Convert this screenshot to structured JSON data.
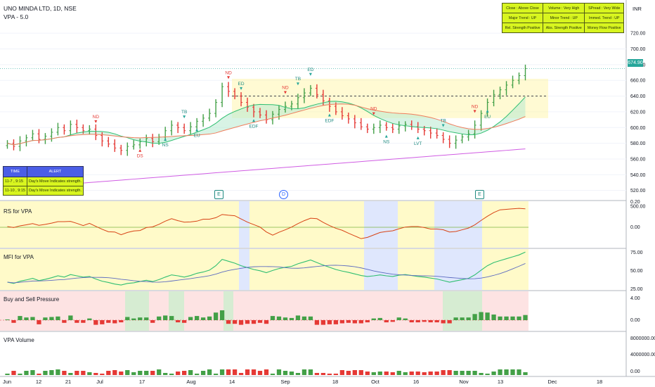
{
  "header": {
    "symbol_line": "UNO MINDA LTD, 1D, NSE",
    "indicator_line": "VPA - 5.0"
  },
  "currency": "INR",
  "last_price": "674.90",
  "condition_table": [
    [
      "Close : Above Close",
      "Volume : Very High",
      "SPread : Very Wide"
    ],
    [
      "Major Trend : UP",
      "Minor Trend : UP",
      "Immed. Trend : UP"
    ],
    [
      "Rel. Strength Positive",
      "Abs. Strength Positive",
      "Money Flow Positive"
    ]
  ],
  "alert_table": {
    "headers": [
      "TIME",
      "ALERT"
    ],
    "rows": [
      [
        "11-7 , 9:15",
        "Day's Move Indicates strength."
      ],
      [
        "11-10 , 9:15",
        "Day's Move Indicates strength."
      ]
    ]
  },
  "price_axis": [
    "720.00",
    "700.00",
    "680.00",
    "660.00",
    "640.00",
    "620.00",
    "600.00",
    "580.00",
    "560.00",
    "540.00",
    "520.00",
    "500.00"
  ],
  "panels": {
    "rs": {
      "title": "RS for VPA",
      "ticks": [
        "0.20",
        "0.00"
      ]
    },
    "mfi": {
      "title": "MFI for VPA",
      "ticks": [
        "75.00",
        "50.00",
        "25.00"
      ]
    },
    "bsp": {
      "title": "Buy and Sell Pressure",
      "ticks": [
        "4.00",
        "0.00"
      ]
    },
    "vol": {
      "title": "VPA Volume",
      "ticks": [
        "8000000.00",
        "4000000.00",
        "0.00"
      ]
    }
  },
  "time_axis": [
    "Jun",
    "12",
    "21",
    "Jul",
    "17",
    "Aug",
    "14",
    "Sep",
    "18",
    "Oct",
    "16",
    "Nov",
    "13",
    "Dec",
    "18"
  ],
  "events": [
    {
      "label": "E",
      "kind": "e"
    },
    {
      "label": "D",
      "kind": "d"
    },
    {
      "label": "E",
      "kind": "e"
    }
  ],
  "signals": [
    {
      "text": "ND",
      "color": "#e53935"
    },
    {
      "text": "DS",
      "color": "#e53935"
    },
    {
      "text": "NS",
      "color": "#1f8a80"
    },
    {
      "text": "TB",
      "color": "#1f8a80"
    },
    {
      "text": "EU",
      "color": "#1f8a80"
    },
    {
      "text": "ND",
      "color": "#e53935"
    },
    {
      "text": "ED",
      "color": "#1f8a80"
    },
    {
      "text": "EDF",
      "color": "#1f8a80"
    },
    {
      "text": "ND",
      "color": "#e53935"
    },
    {
      "text": "TB",
      "color": "#1f8a80"
    },
    {
      "text": "ED",
      "color": "#1f8a80"
    },
    {
      "text": "EDF",
      "color": "#1f8a80"
    },
    {
      "text": "ND",
      "color": "#e53935"
    },
    {
      "text": "NS",
      "color": "#1f8a80"
    },
    {
      "text": "LVT",
      "color": "#1f8a80"
    },
    {
      "text": "TB",
      "color": "#1f8a80"
    },
    {
      "text": "ND",
      "color": "#e53935"
    },
    {
      "text": "EU",
      "color": "#1f8a80"
    }
  ],
  "colors": {
    "up": "#26a69a",
    "down": "#ef5350",
    "bull_green": "#43a047",
    "yellow_zone": "#fff59d",
    "blue_zone": "#c5d3fb",
    "ma_long": "#d05ce3"
  },
  "chart_data": {
    "type": "candlestick",
    "symbol": "UNO MINDA LTD",
    "interval": "1D",
    "ylim": [
      500,
      730
    ],
    "last_close": 674.9,
    "series": [
      {
        "name": "Close",
        "values": [
          580,
          576,
          583,
          587,
          592,
          585,
          589,
          594,
          600,
          596,
          604,
          600,
          596,
          598,
          590,
          583,
          579,
          574,
          571,
          576,
          578,
          582,
          586,
          582,
          588,
          596,
          603,
          600,
          596,
          601,
          608,
          612,
          618,
          632,
          652,
          646,
          640,
          632,
          626,
          620,
          616,
          610,
          617,
          623,
          627,
          630,
          638,
          644,
          650,
          642,
          634,
          627,
          620,
          615,
          611,
          606,
          601,
          598,
          600,
          603,
          600,
          598,
          602,
          604,
          601,
          598,
          596,
          593,
          590,
          585,
          580,
          584,
          588,
          592,
          603,
          618,
          632,
          642,
          648,
          654,
          660,
          666,
          675
        ]
      }
    ]
  }
}
